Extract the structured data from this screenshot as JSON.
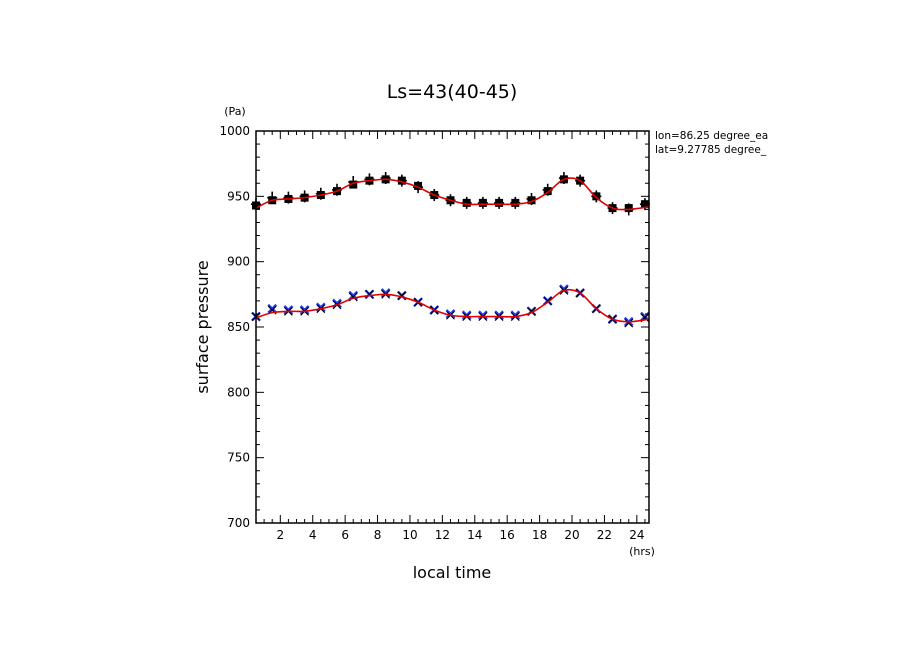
{
  "chart_data": {
    "type": "scatter",
    "title": "Ls=43(40-45)",
    "xlabel": "local time",
    "ylabel": "surface pressure",
    "x_unit": "(hrs)",
    "y_unit": "(Pa)",
    "xlim": [
      0.5,
      24.75
    ],
    "ylim": [
      700,
      1000
    ],
    "xticks": [
      2,
      4,
      6,
      8,
      10,
      12,
      14,
      16,
      18,
      20,
      22,
      24
    ],
    "yticks": [
      700,
      750,
      800,
      850,
      900,
      950,
      1000
    ],
    "annotations": [
      "lon=86.25 degree_ea",
      "lat=9.27785 degree_"
    ],
    "legend": "none",
    "grid": false,
    "series": [
      {
        "marker": "plus",
        "color": "#000000",
        "x": [
          0.5,
          1.5,
          2.5,
          3.5,
          4.5,
          5.5,
          6.5,
          7.5,
          8.5,
          9.5,
          10.5,
          11.5,
          12.5,
          13.5,
          14.5,
          15.5,
          16.5,
          17.5,
          18.5,
          19.5,
          20.5,
          21.5,
          22.5,
          23.5,
          24.5
        ],
        "y": [
          944,
          949,
          949,
          950,
          952,
          955,
          961,
          963,
          964,
          962,
          957,
          951,
          947,
          945,
          945,
          945,
          945,
          948,
          955,
          964,
          962,
          950,
          941,
          940,
          944
        ]
      },
      {
        "marker": "square",
        "color": "#000000",
        "x": [
          0.5,
          1.5,
          2.5,
          3.5,
          4.5,
          5.5,
          6.5,
          7.5,
          8.5,
          9.5,
          10.5,
          11.5,
          12.5,
          13.5,
          14.5,
          15.5,
          16.5,
          17.5,
          18.5,
          19.5,
          20.5,
          21.5,
          22.5,
          23.5,
          24.5
        ],
        "y": [
          943,
          947,
          948,
          949,
          951,
          954,
          959,
          962,
          963,
          962,
          958,
          951,
          947,
          945,
          945,
          945,
          945,
          947,
          954,
          963,
          962,
          950,
          941,
          941,
          944
        ]
      },
      {
        "name": "",
        "marker": "x",
        "color": "#1f3fff",
        "x": [
          0.5,
          1.5,
          2.5,
          3.5,
          4.5,
          5.5,
          6.5,
          7.5,
          8.5,
          9.5,
          10.5,
          11.5,
          12.5,
          13.5,
          14.5,
          15.5,
          16.5,
          17.5,
          18.5,
          19.5,
          20.5,
          21.5,
          22.5,
          23.5,
          24.5
        ],
        "y": [
          858,
          864,
          863,
          863,
          865,
          868,
          874,
          875,
          876,
          874,
          869,
          863,
          860,
          859,
          859,
          859,
          859,
          862,
          870,
          879,
          876,
          864,
          856,
          854,
          858
        ]
      },
      {
        "marker": "x",
        "color": "#000000",
        "x": [
          0.5,
          1.5,
          2.5,
          3.5,
          4.5,
          5.5,
          6.5,
          7.5,
          8.5,
          9.5,
          10.5,
          11.5,
          12.5,
          13.5,
          14.5,
          15.5,
          16.5,
          17.5,
          18.5,
          19.5,
          20.5,
          21.5,
          22.5,
          23.5,
          24.5
        ],
        "y": [
          858,
          863,
          862,
          862,
          864,
          867,
          873,
          875,
          875,
          874,
          869,
          863,
          859,
          858,
          858,
          858,
          858,
          862,
          870,
          878,
          876,
          864,
          856,
          853,
          857
        ]
      },
      {
        "marker": "line",
        "color": "#e00000",
        "x": [
          0.5,
          1.5,
          2.5,
          3.5,
          4.5,
          5.5,
          6.5,
          7.5,
          8.5,
          9.5,
          10.5,
          11.5,
          12.5,
          13.5,
          14.5,
          15.5,
          16.5,
          17.5,
          18.5,
          19.5,
          20.5,
          21.5,
          22.5,
          23.5,
          24.75
        ],
        "y": [
          941,
          947,
          948,
          949,
          951,
          954,
          960,
          962,
          963,
          961,
          957,
          951,
          947,
          944,
          944,
          944,
          944,
          946,
          953,
          963,
          962,
          949,
          941,
          940,
          942
        ]
      },
      {
        "marker": "line",
        "color": "#e00000",
        "x": [
          0.5,
          1.5,
          2.5,
          3.5,
          4.5,
          5.5,
          6.5,
          7.5,
          8.5,
          9.5,
          10.5,
          11.5,
          12.5,
          13.5,
          14.5,
          15.5,
          16.5,
          17.5,
          18.5,
          19.5,
          20.5,
          21.5,
          22.5,
          23.5,
          24.75
        ],
        "y": [
          857,
          861,
          862,
          862,
          864,
          867,
          872,
          874,
          875,
          873,
          869,
          863,
          859,
          858,
          858,
          858,
          858,
          861,
          869,
          878,
          876,
          864,
          856,
          854,
          856
        ]
      }
    ]
  }
}
